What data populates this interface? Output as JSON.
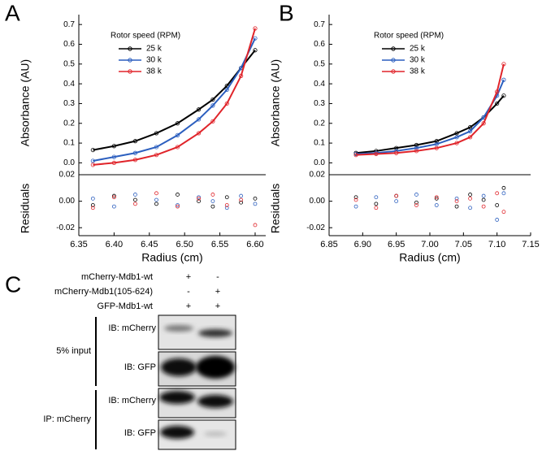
{
  "panel_labels": [
    "A",
    "B",
    "C"
  ],
  "chart_data": [
    {
      "type": "line",
      "legend_title": "Rotor speed (RPM)",
      "xlabel": "Radius (cm)",
      "ylabel": "Absorbance (AU)",
      "residual_label": "Residuals",
      "x": [
        6.37,
        6.4,
        6.43,
        6.46,
        6.49,
        6.52,
        6.54,
        6.56,
        6.58,
        6.6
      ],
      "xlim": [
        6.35,
        6.615
      ],
      "xticks": [
        6.35,
        {
          "value": 6.4,
          "label": "6.40"
        },
        6.45,
        {
          "value": 6.5,
          "label": "6.50"
        },
        6.55,
        {
          "value": 6.6,
          "label": "6.60"
        }
      ],
      "ylim": [
        -0.06,
        0.75
      ],
      "yticks": [
        {
          "value": 0,
          "label": "0.0"
        },
        0.1,
        0.2,
        0.3,
        0.4,
        0.5,
        0.6,
        0.7
      ],
      "residual_ylim": [
        -0.026,
        0.02
      ],
      "residual_yticks": [
        0.02,
        {
          "value": 0,
          "label": "0.00"
        },
        -0.02
      ],
      "series": [
        {
          "name": "25 k",
          "color": "#000000",
          "values": [
            0.065,
            0.085,
            0.11,
            0.15,
            0.2,
            0.27,
            0.32,
            0.39,
            0.48,
            0.57
          ],
          "residuals": [
            -0.003,
            0.004,
            0.001,
            -0.002,
            0.005,
            0.0,
            -0.004,
            0.003,
            -0.001,
            0.002
          ]
        },
        {
          "name": "30 k",
          "color": "#2c5fbf",
          "values": [
            0.01,
            0.03,
            0.05,
            0.08,
            0.14,
            0.22,
            0.29,
            0.37,
            0.48,
            0.63
          ],
          "residuals": [
            0.002,
            -0.004,
            0.005,
            0.001,
            -0.003,
            0.003,
            0.0,
            -0.005,
            0.004,
            -0.002
          ]
        },
        {
          "name": "38 k",
          "color": "#e0242a",
          "values": [
            -0.01,
            0.0,
            0.015,
            0.04,
            0.08,
            0.15,
            0.21,
            0.3,
            0.44,
            0.68
          ],
          "residuals": [
            -0.005,
            0.003,
            -0.002,
            0.006,
            -0.004,
            0.002,
            0.005,
            -0.003,
            0.001,
            -0.018
          ]
        }
      ]
    },
    {
      "type": "line",
      "legend_title": "Rotor speed (RPM)",
      "xlabel": "Radius (cm)",
      "ylabel": "Absorbance (AU)",
      "residual_label": "Residuals",
      "x": [
        6.89,
        6.92,
        6.95,
        6.98,
        7.01,
        7.04,
        7.06,
        7.08,
        7.1,
        7.11
      ],
      "xlim": [
        6.85,
        7.15
      ],
      "xticks": [
        6.85,
        {
          "value": 6.9,
          "label": "6.90"
        },
        6.95,
        {
          "value": 7.0,
          "label": "7.00"
        },
        7.05,
        {
          "value": 7.1,
          "label": "7.10"
        },
        7.15
      ],
      "ylim": [
        -0.06,
        0.75
      ],
      "yticks": [
        {
          "value": 0,
          "label": "0.0"
        },
        0.1,
        0.2,
        0.3,
        0.4,
        0.5,
        0.6,
        0.7
      ],
      "residual_ylim": [
        -0.026,
        0.02
      ],
      "residual_yticks": [
        0.02,
        {
          "value": 0,
          "label": "0.00"
        },
        -0.02
      ],
      "series": [
        {
          "name": "25 k",
          "color": "#000000",
          "values": [
            0.05,
            0.06,
            0.075,
            0.09,
            0.11,
            0.15,
            0.18,
            0.23,
            0.3,
            0.34
          ],
          "residuals": [
            0.003,
            -0.002,
            0.004,
            -0.001,
            0.002,
            -0.004,
            0.005,
            0.001,
            -0.003,
            0.01
          ]
        },
        {
          "name": "30 k",
          "color": "#2c5fbf",
          "values": [
            0.045,
            0.05,
            0.06,
            0.075,
            0.095,
            0.13,
            0.16,
            0.23,
            0.34,
            0.42
          ],
          "residuals": [
            -0.004,
            0.003,
            0.0,
            0.005,
            -0.003,
            0.002,
            -0.005,
            0.004,
            -0.014,
            0.006
          ]
        },
        {
          "name": "38 k",
          "color": "#e0242a",
          "values": [
            0.04,
            0.045,
            0.05,
            0.06,
            0.075,
            0.1,
            0.13,
            0.2,
            0.36,
            0.5
          ],
          "residuals": [
            0.001,
            -0.005,
            0.004,
            -0.003,
            0.003,
            0.0,
            0.002,
            -0.004,
            0.006,
            -0.008
          ]
        }
      ]
    }
  ],
  "blot": {
    "treatments": [
      {
        "label": "mCherry-Mdb1-wt",
        "lanes": [
          "+",
          "-"
        ]
      },
      {
        "label": "mCherry-Mdb1(105-624)",
        "lanes": [
          "-",
          "+"
        ]
      },
      {
        "label": "GFP-Mdb1-wt",
        "lanes": [
          "+",
          "+"
        ]
      }
    ],
    "groups": [
      {
        "label": "5% input",
        "panels": [
          "IB: mCherry",
          "IB: GFP"
        ]
      },
      {
        "label": "IP: mCherry",
        "panels": [
          "IB: mCherry",
          "IB: GFP"
        ]
      }
    ]
  }
}
